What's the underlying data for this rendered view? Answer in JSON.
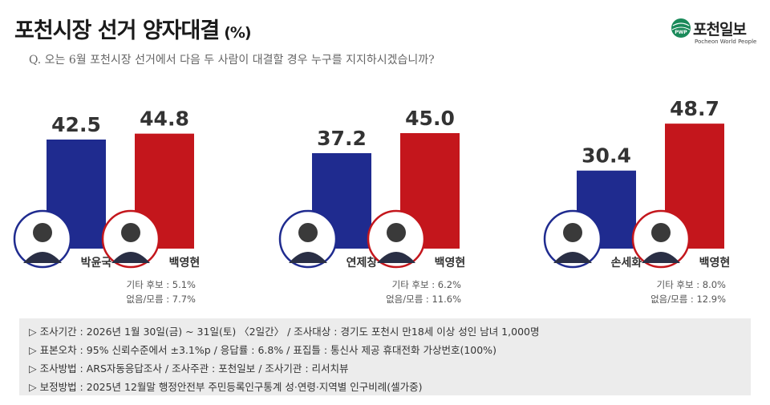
{
  "title": "포천시장 선거 양자대결",
  "title_unit": "(%)",
  "logo": {
    "name": "포천일보",
    "tagline": "Pocheon World People",
    "mark": "PWP"
  },
  "question": "Q. 오는 6월 포천시장 선거에서 다음 두 사람이 대결할 경우 누구를 지지하시겠습니까?",
  "colors": {
    "blue": "#1f2b8f",
    "red": "#c4161c"
  },
  "chart_data": {
    "type": "bar",
    "ylim": [
      0,
      60
    ],
    "groups": [
      {
        "bars": [
          {
            "name": "박윤국",
            "value": 42.5,
            "label": "42.5",
            "color": "blue"
          },
          {
            "name": "백영현",
            "value": 44.8,
            "label": "44.8",
            "color": "red"
          }
        ],
        "other": "기타 후보 : 5.1%",
        "none": "없음/모름 : 7.7%"
      },
      {
        "bars": [
          {
            "name": "연제창",
            "value": 37.2,
            "label": "37.2",
            "color": "blue"
          },
          {
            "name": "백영현",
            "value": 45.0,
            "label": "45.0",
            "color": "red"
          }
        ],
        "other": "기타 후보 : 6.2%",
        "none": "없음/모름 : 11.6%"
      },
      {
        "bars": [
          {
            "name": "손세화",
            "value": 30.4,
            "label": "30.4",
            "color": "blue"
          },
          {
            "name": "백영현",
            "value": 48.7,
            "label": "48.7",
            "color": "red"
          }
        ],
        "other": "기타 후보 : 8.0%",
        "none": "없음/모름 : 12.9%"
      }
    ]
  },
  "footer": [
    "▷ 조사기간 : 2026년 1월 30일(금) ~ 31일(토) 〈2일간〉 / 조사대상 : 경기도 포천시 만18세 이상 성인 남녀 1,000명",
    "▷ 표본오차 : 95% 신뢰수준에서 ±3.1%p / 응답률 : 6.8% / 표집틀 : 통신사 제공 휴대전화 가상번호(100%)",
    "▷ 조사방법 : ARS자동응답조사 / 조사주관 : 포천일보 / 조사기관 : 리서치뷰",
    "▷ 보정방법 : 2025년 12월말 행정안전부 주민등록인구통계 성·연령·지역별 인구비례(셀가중)"
  ]
}
